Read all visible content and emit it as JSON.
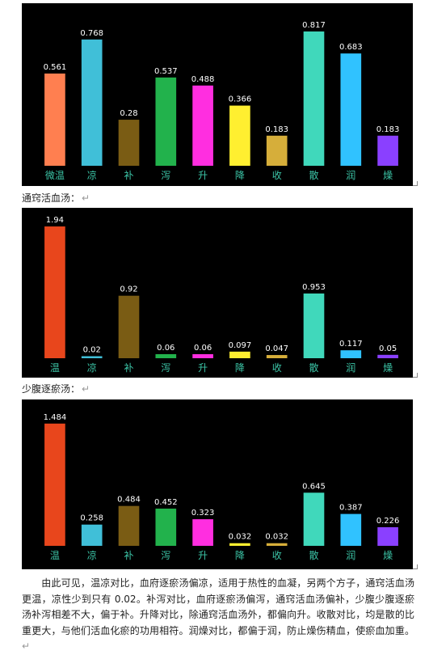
{
  "captions": {
    "chart2": "通窍活血汤：",
    "chart3": "少腹逐瘀汤："
  },
  "paragraph": "　　由此可见，温凉对比，血府逐瘀汤偏凉，适用于热性的血凝，另两个方子，通窍活血汤更温，凉性少到只有 0.02。补泻对比，血府逐瘀汤偏泻，通窍活血汤偏补，少腹少腹逐瘀汤补泻相差不大，偏于补。升降对比，除通窍活血汤外，都偏向升。收散对比，均是散的比重更大，与他们活血化瘀的功用相符。润燥对比，都偏于润，防止燥伤精血，使瘀血加重。",
  "paragraph_mark": "↵",
  "caption_mark": "↵",
  "chart_data": [
    {
      "type": "bar",
      "categories": [
        "微温",
        "凉",
        "补",
        "泻",
        "升",
        "降",
        "收",
        "散",
        "润",
        "燥"
      ],
      "values": [
        0.561,
        0.768,
        0.28,
        0.537,
        0.488,
        0.366,
        0.183,
        0.817,
        0.683,
        0.183
      ],
      "labels": [
        "0.561",
        "0.768",
        "0.28",
        "0.537",
        "0.488",
        "0.366",
        "0.183",
        "0.817",
        "0.683",
        "0.183"
      ],
      "ylim": [
        0,
        0.9
      ],
      "colors": [
        "#ff7f50",
        "#40bfd8",
        "#7a5c14",
        "#22b24c",
        "#ff2ee0",
        "#ffef30",
        "#d6ae3a",
        "#40d8bb",
        "#30c2ff",
        "#8a40ff"
      ],
      "tick_color": "#3cc6a8"
    },
    {
      "type": "bar",
      "categories": [
        "温",
        "凉",
        "补",
        "泻",
        "升",
        "降",
        "收",
        "散",
        "润",
        "燥"
      ],
      "values": [
        1.94,
        0.02,
        0.92,
        0.06,
        0.06,
        0.097,
        0.047,
        0.953,
        0.117,
        0.05
      ],
      "labels": [
        "1.94",
        "0.02",
        "0.92",
        "0.06",
        "0.06",
        "0.097",
        "0.047",
        "0.953",
        "0.117",
        "0.05"
      ],
      "ylim": [
        0,
        2.0
      ],
      "colors": [
        "#e8461c",
        "#40bfd8",
        "#7a5c14",
        "#22b24c",
        "#ff2ee0",
        "#ffef30",
        "#d6ae3a",
        "#40d8bb",
        "#30c2ff",
        "#8a40ff"
      ],
      "tick_color": "#3cc6a8"
    },
    {
      "type": "bar",
      "categories": [
        "温",
        "凉",
        "补",
        "泻",
        "升",
        "降",
        "收",
        "散",
        "润",
        "燥"
      ],
      "values": [
        1.484,
        0.258,
        0.484,
        0.452,
        0.323,
        0.032,
        0.032,
        0.645,
        0.387,
        0.226
      ],
      "labels": [
        "1.484",
        "0.258",
        "0.484",
        "0.452",
        "0.323",
        "0.032",
        "0.032",
        "0.645",
        "0.387",
        "0.226"
      ],
      "ylim": [
        0,
        1.6
      ],
      "colors": [
        "#e8461c",
        "#40bfd8",
        "#7a5c14",
        "#22b24c",
        "#ff2ee0",
        "#ffef30",
        "#d6ae3a",
        "#40d8bb",
        "#30c2ff",
        "#8a40ff"
      ],
      "tick_color": "#3cc6a8"
    }
  ]
}
